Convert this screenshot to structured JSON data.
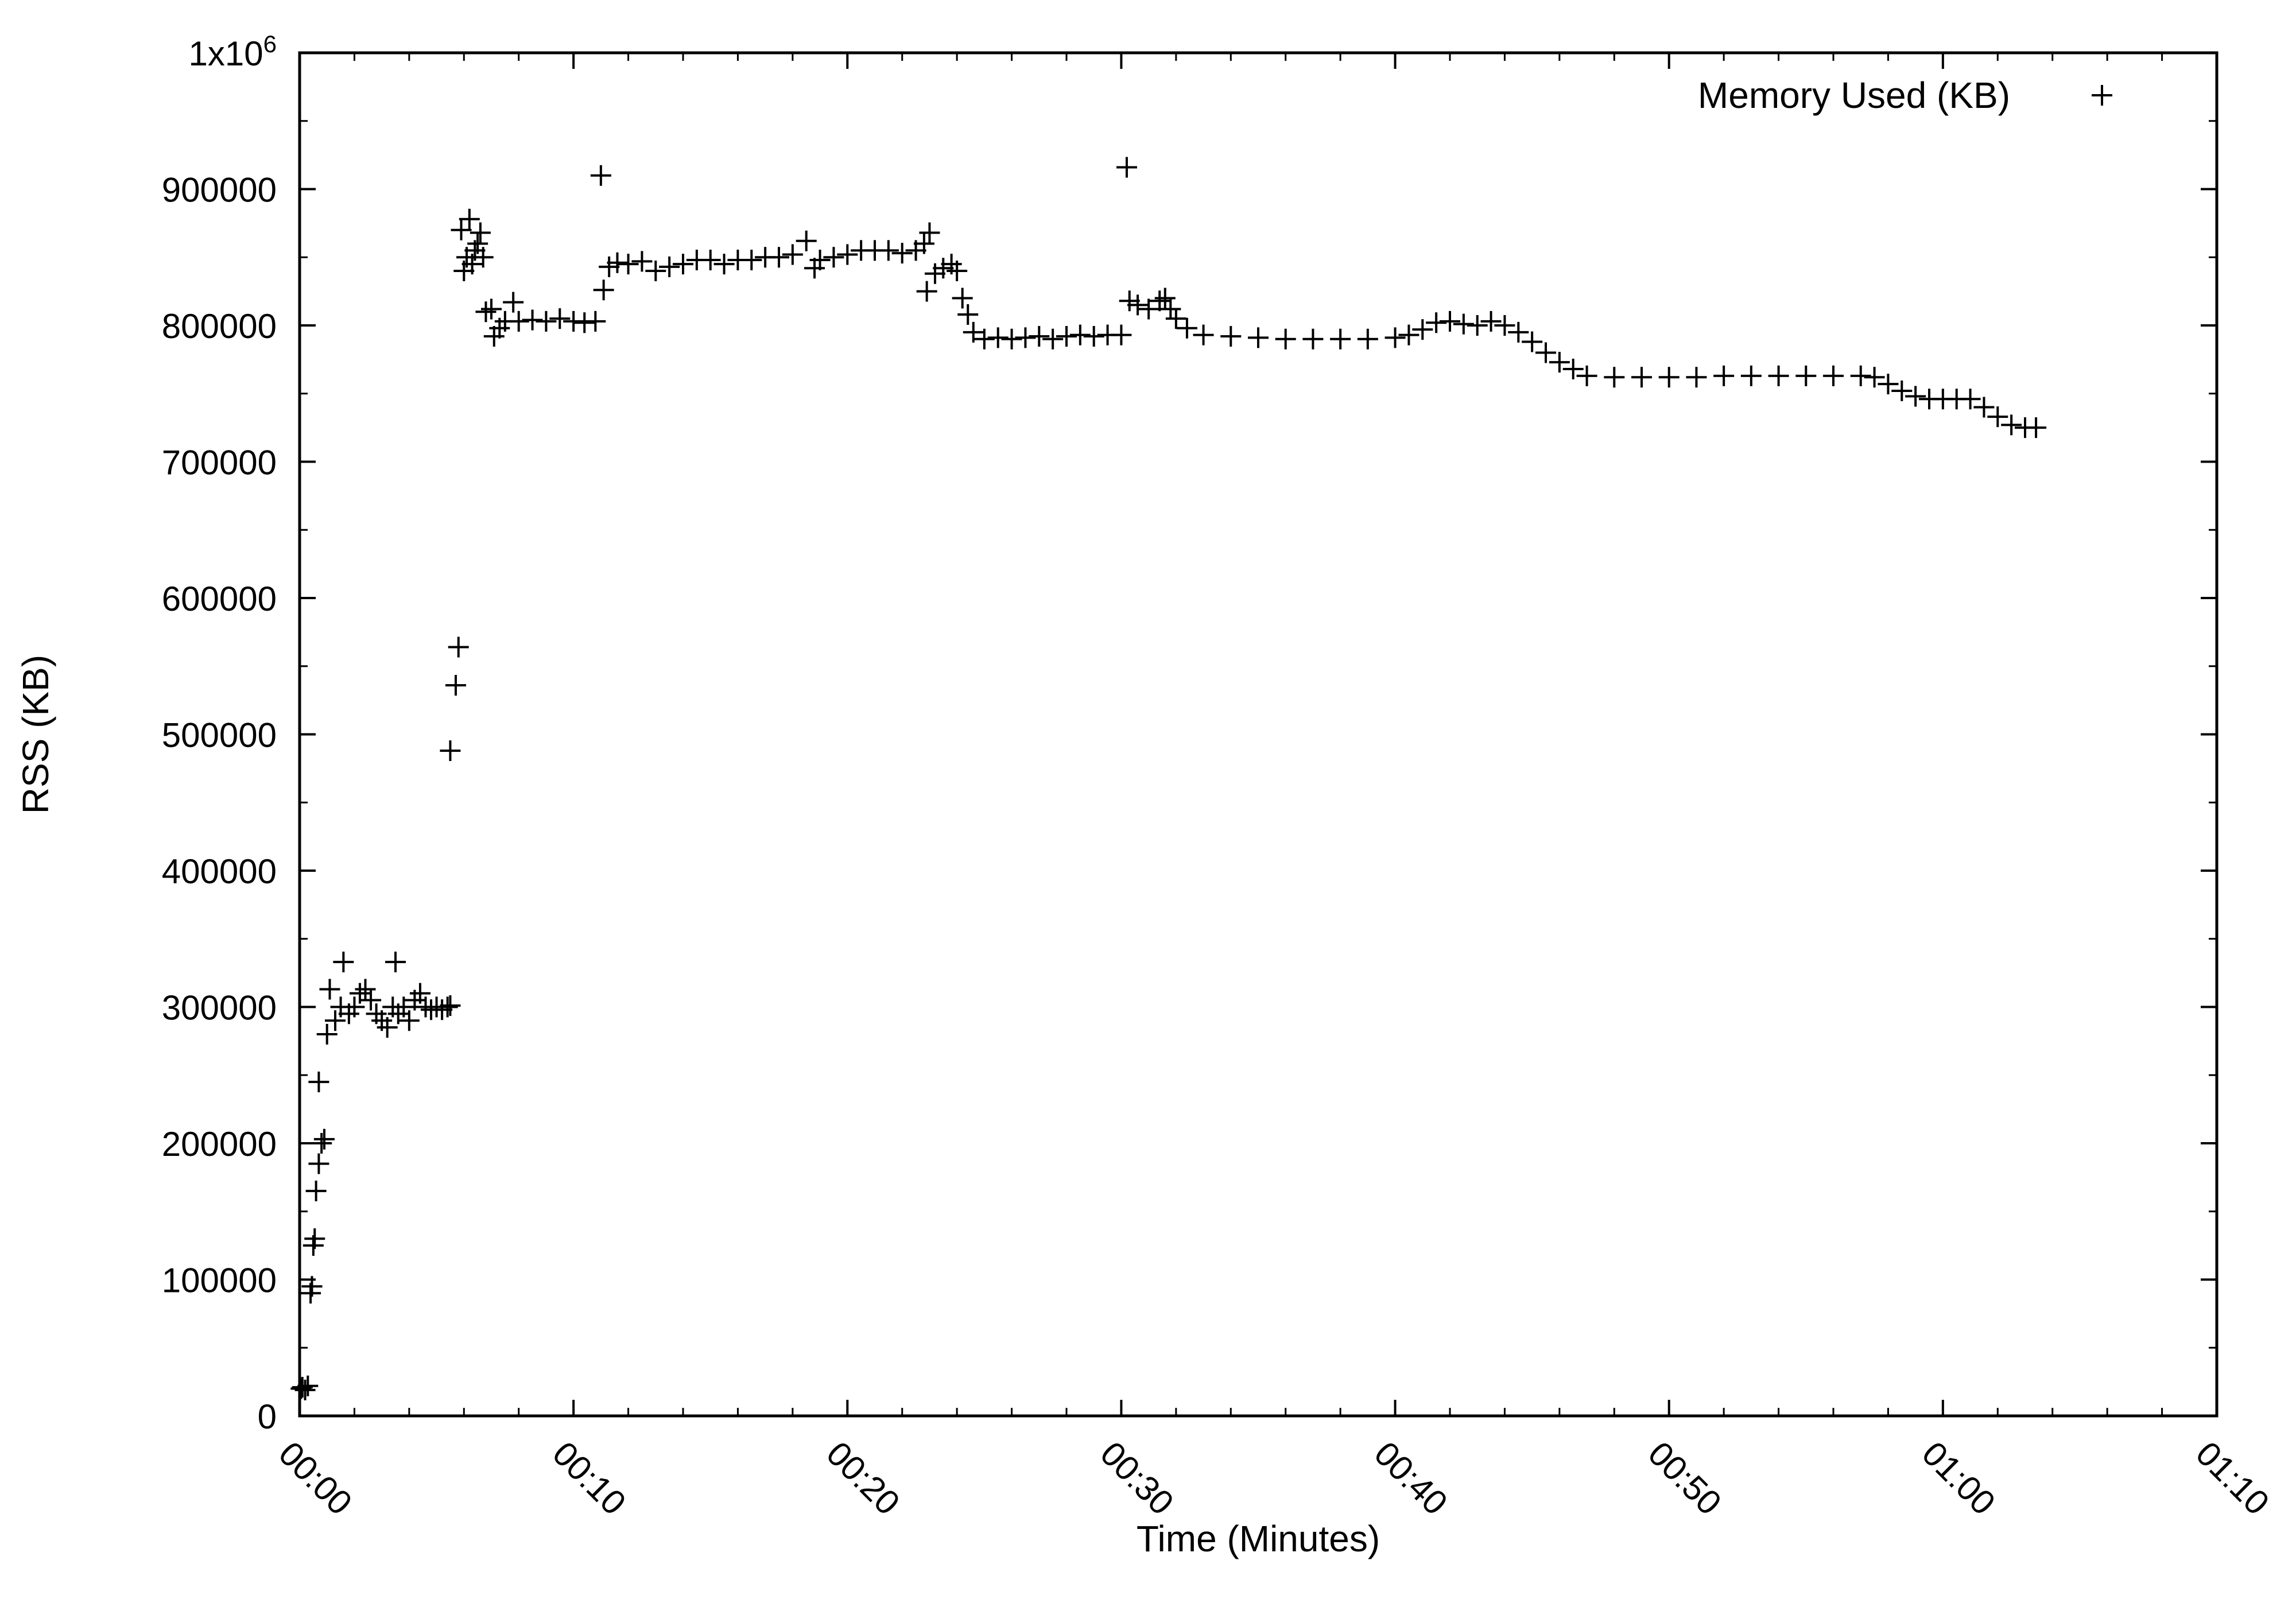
{
  "chart_data": {
    "type": "scatter",
    "title": "",
    "xlabel": "Time (Minutes)",
    "ylabel": "RSS (KB)",
    "xlim": [
      0,
      70
    ],
    "ylim": [
      0,
      1000000
    ],
    "x_ticks": [
      {
        "value": 0,
        "label": "00:00"
      },
      {
        "value": 10,
        "label": "00:10"
      },
      {
        "value": 20,
        "label": "00:20"
      },
      {
        "value": 30,
        "label": "00:30"
      },
      {
        "value": 40,
        "label": "00:40"
      },
      {
        "value": 50,
        "label": "00:50"
      },
      {
        "value": 60,
        "label": "01:00"
      },
      {
        "value": 70,
        "label": "01:10"
      }
    ],
    "y_ticks": [
      {
        "value": 0,
        "label": "0"
      },
      {
        "value": 100000,
        "label": "100000"
      },
      {
        "value": 200000,
        "label": "200000"
      },
      {
        "value": 300000,
        "label": "300000"
      },
      {
        "value": 400000,
        "label": "400000"
      },
      {
        "value": 500000,
        "label": "500000"
      },
      {
        "value": 600000,
        "label": "600000"
      },
      {
        "value": 700000,
        "label": "700000"
      },
      {
        "value": 800000,
        "label": "800000"
      },
      {
        "value": 900000,
        "label": "900000"
      }
    ],
    "y_top_label": {
      "base": "1x10",
      "exponent": "6",
      "value": 1000000
    },
    "grid": false,
    "legend_position": "top-right",
    "series": [
      {
        "name": "Memory Used (KB)",
        "marker": "plus",
        "color": "#000000",
        "points": [
          [
            0.05,
            20000
          ],
          [
            0.1,
            21000
          ],
          [
            0.2,
            19000
          ],
          [
            0.3,
            22000
          ],
          [
            0.4,
            90000
          ],
          [
            0.45,
            95000
          ],
          [
            0.5,
            125000
          ],
          [
            0.55,
            130000
          ],
          [
            0.6,
            165000
          ],
          [
            0.7,
            185000
          ],
          [
            0.8,
            200000
          ],
          [
            0.9,
            203000
          ],
          [
            0.7,
            245000
          ],
          [
            1.0,
            280000
          ],
          [
            1.1,
            313000
          ],
          [
            1.3,
            290000
          ],
          [
            1.5,
            300000
          ],
          [
            1.6,
            333000
          ],
          [
            1.8,
            295000
          ],
          [
            2.0,
            300000
          ],
          [
            2.2,
            310000
          ],
          [
            2.4,
            313000
          ],
          [
            2.6,
            305000
          ],
          [
            2.8,
            295000
          ],
          [
            3.0,
            290000
          ],
          [
            3.2,
            285000
          ],
          [
            3.4,
            300000
          ],
          [
            3.5,
            333000
          ],
          [
            3.6,
            295000
          ],
          [
            3.8,
            300000
          ],
          [
            4.0,
            290000
          ],
          [
            4.2,
            305000
          ],
          [
            4.4,
            310000
          ],
          [
            4.6,
            300000
          ],
          [
            4.8,
            298000
          ],
          [
            5.0,
            300000
          ],
          [
            5.2,
            298000
          ],
          [
            5.4,
            300000
          ],
          [
            5.5,
            301000
          ],
          [
            5.5,
            488000
          ],
          [
            5.7,
            536000
          ],
          [
            5.8,
            564000
          ],
          [
            5.9,
            870000
          ],
          [
            6.0,
            840000
          ],
          [
            6.1,
            850000
          ],
          [
            6.2,
            878000
          ],
          [
            6.3,
            845000
          ],
          [
            6.4,
            855000
          ],
          [
            6.5,
            860000
          ],
          [
            6.6,
            868000
          ],
          [
            6.7,
            850000
          ],
          [
            6.8,
            810000
          ],
          [
            7.0,
            812000
          ],
          [
            7.1,
            792000
          ],
          [
            7.3,
            798000
          ],
          [
            7.5,
            803000
          ],
          [
            7.8,
            817000
          ],
          [
            8.0,
            803000
          ],
          [
            8.5,
            804000
          ],
          [
            9.0,
            803000
          ],
          [
            9.5,
            805000
          ],
          [
            10.0,
            803000
          ],
          [
            10.4,
            802000
          ],
          [
            10.8,
            803000
          ],
          [
            11.0,
            910000
          ],
          [
            11.1,
            826000
          ],
          [
            11.3,
            843000
          ],
          [
            11.6,
            846000
          ],
          [
            12.0,
            845000
          ],
          [
            12.5,
            847000
          ],
          [
            13.0,
            840000
          ],
          [
            13.5,
            843000
          ],
          [
            14.0,
            845000
          ],
          [
            14.5,
            848000
          ],
          [
            15.0,
            848000
          ],
          [
            15.5,
            845000
          ],
          [
            16.0,
            848000
          ],
          [
            16.5,
            848000
          ],
          [
            17.0,
            850000
          ],
          [
            17.5,
            850000
          ],
          [
            18.0,
            852000
          ],
          [
            18.5,
            862000
          ],
          [
            18.8,
            842000
          ],
          [
            19.0,
            848000
          ],
          [
            19.5,
            850000
          ],
          [
            20.0,
            852000
          ],
          [
            20.5,
            855000
          ],
          [
            21.0,
            855000
          ],
          [
            21.5,
            855000
          ],
          [
            22.0,
            853000
          ],
          [
            22.5,
            855000
          ],
          [
            22.8,
            860000
          ],
          [
            23.0,
            868000
          ],
          [
            22.9,
            825000
          ],
          [
            23.2,
            838000
          ],
          [
            23.5,
            842000
          ],
          [
            23.8,
            845000
          ],
          [
            24.0,
            840000
          ],
          [
            24.2,
            820000
          ],
          [
            24.4,
            808000
          ],
          [
            24.6,
            795000
          ],
          [
            25.0,
            790000
          ],
          [
            25.5,
            791000
          ],
          [
            26.0,
            790000
          ],
          [
            26.5,
            791000
          ],
          [
            27.0,
            792000
          ],
          [
            27.5,
            790000
          ],
          [
            28.0,
            792000
          ],
          [
            28.5,
            793000
          ],
          [
            29.0,
            792000
          ],
          [
            29.5,
            793000
          ],
          [
            30.0,
            793000
          ],
          [
            30.2,
            916000
          ],
          [
            30.3,
            818000
          ],
          [
            30.6,
            815000
          ],
          [
            31.0,
            812000
          ],
          [
            31.4,
            818000
          ],
          [
            31.6,
            820000
          ],
          [
            31.8,
            812000
          ],
          [
            32.0,
            805000
          ],
          [
            32.4,
            798000
          ],
          [
            33.0,
            793000
          ],
          [
            34.0,
            792000
          ],
          [
            35.0,
            791000
          ],
          [
            36.0,
            790000
          ],
          [
            37.0,
            790000
          ],
          [
            38.0,
            790000
          ],
          [
            39.0,
            790000
          ],
          [
            40.0,
            791000
          ],
          [
            40.5,
            793000
          ],
          [
            41.0,
            797000
          ],
          [
            41.5,
            802000
          ],
          [
            42.0,
            803000
          ],
          [
            42.5,
            801000
          ],
          [
            43.0,
            800000
          ],
          [
            43.5,
            803000
          ],
          [
            44.0,
            800000
          ],
          [
            44.5,
            795000
          ],
          [
            45.0,
            788000
          ],
          [
            45.5,
            780000
          ],
          [
            46.0,
            773000
          ],
          [
            46.5,
            768000
          ],
          [
            47.0,
            763000
          ],
          [
            48.0,
            762000
          ],
          [
            49.0,
            762000
          ],
          [
            50.0,
            762000
          ],
          [
            51.0,
            762000
          ],
          [
            52.0,
            763000
          ],
          [
            53.0,
            763000
          ],
          [
            54.0,
            763000
          ],
          [
            55.0,
            763000
          ],
          [
            56.0,
            763000
          ],
          [
            57.0,
            763000
          ],
          [
            57.5,
            762000
          ],
          [
            58.0,
            757000
          ],
          [
            58.5,
            752000
          ],
          [
            59.0,
            748000
          ],
          [
            59.5,
            746000
          ],
          [
            60.0,
            746000
          ],
          [
            60.5,
            746000
          ],
          [
            61.0,
            746000
          ],
          [
            61.5,
            740000
          ],
          [
            62.0,
            733000
          ],
          [
            62.5,
            727000
          ],
          [
            63.0,
            725000
          ],
          [
            63.4,
            725000
          ]
        ]
      }
    ]
  }
}
